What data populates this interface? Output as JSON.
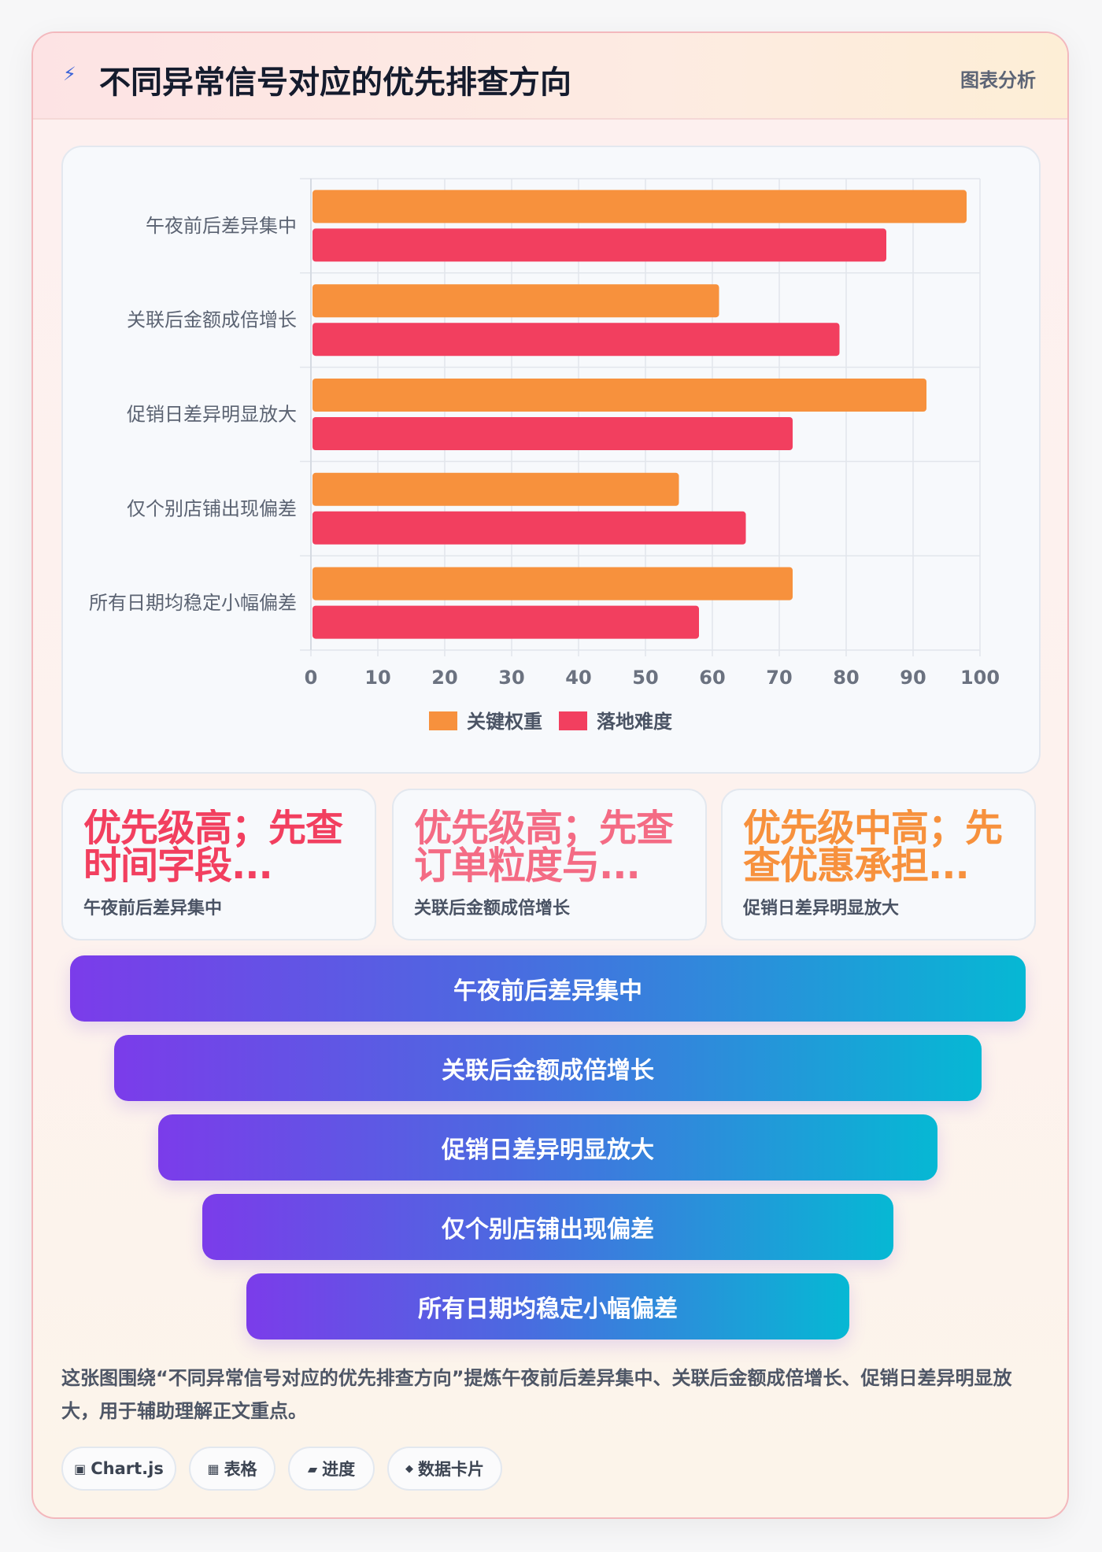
{
  "header": {
    "icon": "lightning-icon",
    "title": "不同异常信号对应的优先排查方向",
    "tag": "图表分析"
  },
  "chart_data": {
    "type": "bar",
    "orientation": "horizontal",
    "categories": [
      "午夜前后差异集中",
      "关联后金额成倍增长",
      "促销日差异明显放大",
      "仅个别店铺出现偏差",
      "所有日期均稳定小幅偏差"
    ],
    "series": [
      {
        "name": "关键权重",
        "color": "#f7913d",
        "values": [
          98,
          61,
          92,
          55,
          72
        ]
      },
      {
        "name": "落地难度",
        "color": "#f23f5f",
        "values": [
          86,
          79,
          72,
          65,
          58
        ]
      }
    ],
    "xlim": [
      0,
      100
    ],
    "xticks": [
      0,
      10,
      20,
      30,
      40,
      50,
      60,
      70,
      80,
      90,
      100
    ],
    "grid": true,
    "legend": "bottom"
  },
  "stat_cards": [
    {
      "value": "优先级高；先查时间字段...",
      "label": "午夜前后差异集中",
      "color": "#f23f5f"
    },
    {
      "value": "优先级高；先查订单粒度与...",
      "label": "关联后金额成倍增长",
      "color": "#f46b84"
    },
    {
      "value": "优先级中高；先查优惠承担...",
      "label": "促销日差异明显放大",
      "color": "#f7913d"
    }
  ],
  "pyramid": [
    "午夜前后差异集中",
    "关联后金额成倍增长",
    "促销日差异明显放大",
    "仅个别店铺出现偏差",
    "所有日期均稳定小幅偏差"
  ],
  "caption": "这张图围绕“不同异常信号对应的优先排查方向”提炼午夜前后差异集中、关联后金额成倍增长、促销日差异明显放大，用于辅助理解正文重点。",
  "tags": [
    {
      "icon": "chart-icon",
      "glyph": "▣",
      "label": "Chart.js"
    },
    {
      "icon": "table-icon",
      "glyph": "▦",
      "label": "表格"
    },
    {
      "icon": "progress-icon",
      "glyph": "▰",
      "label": "进度"
    },
    {
      "icon": "card-icon",
      "glyph": "◆",
      "label": "数据卡片"
    }
  ]
}
